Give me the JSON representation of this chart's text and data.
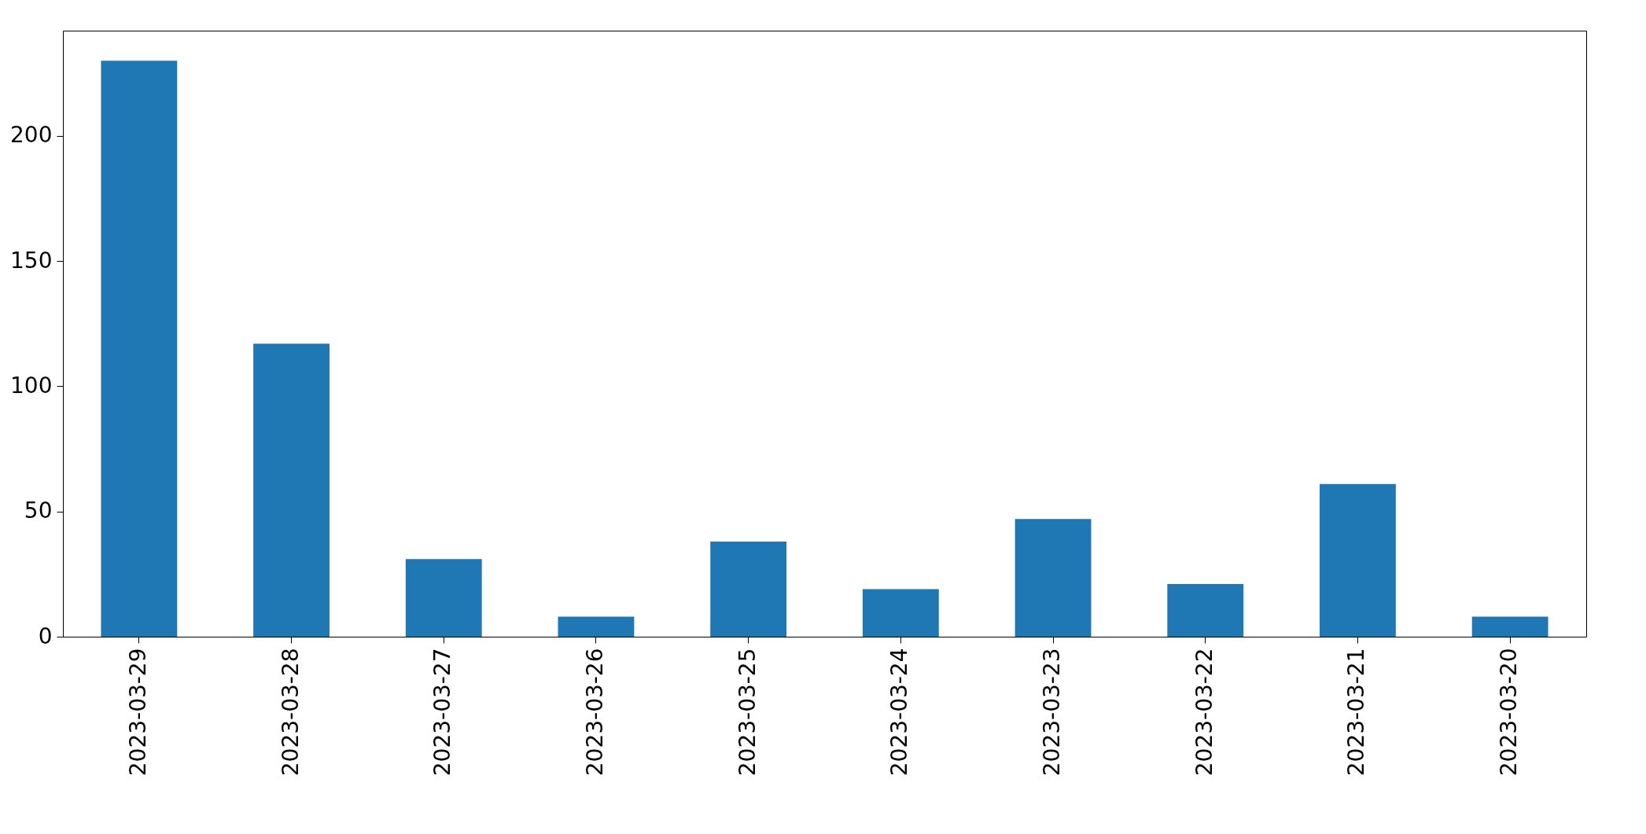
{
  "chart_data": {
    "type": "bar",
    "categories": [
      "2023-03-29",
      "2023-03-28",
      "2023-03-27",
      "2023-03-26",
      "2023-03-25",
      "2023-03-24",
      "2023-03-23",
      "2023-03-22",
      "2023-03-21",
      "2023-03-20"
    ],
    "values": [
      230,
      117,
      31,
      8,
      38,
      19,
      47,
      21,
      61,
      8
    ],
    "color": "#1f77b4",
    "ylim": [
      0,
      242
    ],
    "yticks": [
      0,
      50,
      100,
      150,
      200
    ],
    "grid": false
  }
}
